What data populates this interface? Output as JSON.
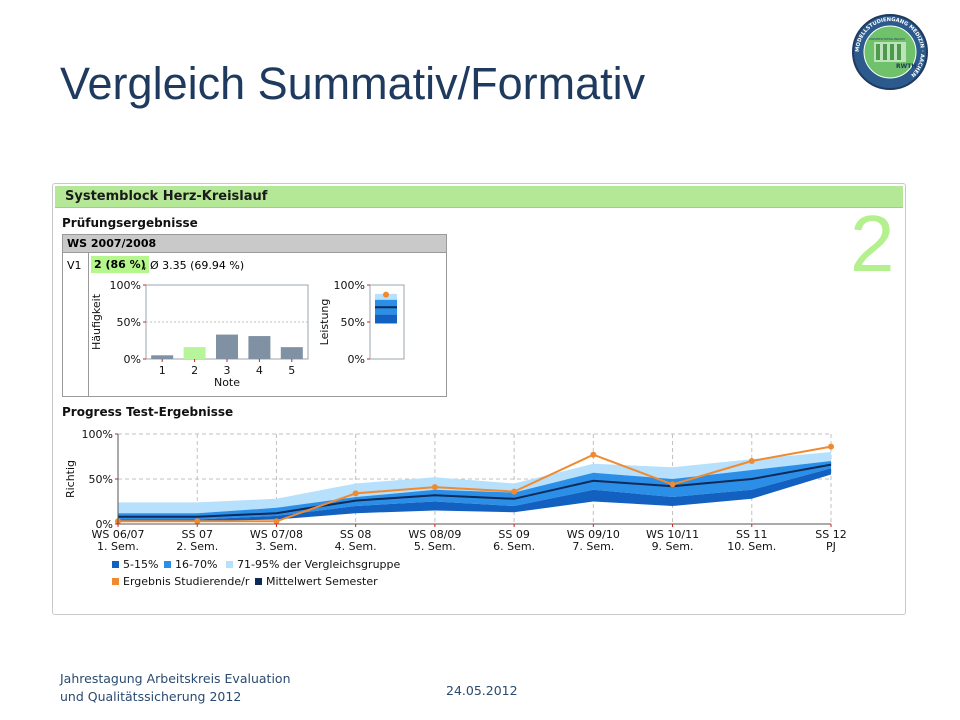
{
  "slide": {
    "title": "Vergleich Summativ/Formativ",
    "big_number": "2",
    "footer_line1": "Jahrestagung Arbeitskreis Evaluation",
    "footer_line2": "und Qualitätssicherung 2012",
    "date": "24.05.2012"
  },
  "logo": {
    "ring_text": "MODELLSTUDIENGANG MEDIZIN · AACHEN",
    "inner_text": "UNIVERSITÄTSKLINIKUM",
    "brand": "RWTH",
    "colors": {
      "ring": "#2c5a8c",
      "inner": "#6fc26a",
      "border": "#1f3a5f"
    }
  },
  "panel": {
    "header": "Systemblock Herz-Kreislauf",
    "section_exam": "Prüfungsergebnisse",
    "semester_label": "WS 2007/2008",
    "row_label": "V1",
    "grade_badge": "2 (86 %)",
    "grade_rest": ", Ø 3.35 (69.94 %)",
    "section_progress": "Progress Test-Ergebnisse"
  },
  "colors": {
    "accent_green": "#b4f08e",
    "band_5_15": "#1260c0",
    "band_16_70": "#2b8fe8",
    "band_71_95": "#b6e0fb",
    "student": "#f08a30",
    "mean": "#0e2a58",
    "bar": "#7f91a2",
    "bar_highlight": "#b8f59a"
  },
  "chart_data": [
    {
      "type": "bar",
      "ylabel": "Häufigkeit",
      "xlabel": "Note",
      "categories": [
        "1",
        "2",
        "3",
        "4",
        "5"
      ],
      "values": [
        5,
        16,
        33,
        31,
        16
      ],
      "highlight_category": "2",
      "yticks": [
        "0%",
        "50%",
        "100%"
      ],
      "ylim": [
        0,
        100
      ]
    },
    {
      "type": "area",
      "ylabel": "Leistung",
      "yticks": [
        "0%",
        "50%",
        "100%"
      ],
      "ylim": [
        0,
        100
      ],
      "bands": {
        "p5_15": [
          48,
          60
        ],
        "p16_70": [
          60,
          80
        ],
        "p71_95": [
          80,
          88
        ]
      },
      "mean": 70,
      "student": 87
    },
    {
      "type": "line",
      "ylabel": "Richtig",
      "yticks": [
        "0%",
        "50%",
        "100%"
      ],
      "ylim": [
        0,
        100
      ],
      "categories": [
        {
          "term": "WS 06/07",
          "sem": "1. Sem."
        },
        {
          "term": "SS 07",
          "sem": "2. Sem."
        },
        {
          "term": "WS 07/08",
          "sem": "3. Sem."
        },
        {
          "term": "SS 08",
          "sem": "4. Sem."
        },
        {
          "term": "WS 08/09",
          "sem": "5. Sem."
        },
        {
          "term": "SS 09",
          "sem": "6. Sem."
        },
        {
          "term": "WS 09/10",
          "sem": "7. Sem."
        },
        {
          "term": "WS 10/11",
          "sem": "9. Sem."
        },
        {
          "term": "SS 11",
          "sem": "10. Sem."
        },
        {
          "term": "SS 12",
          "sem": "PJ"
        }
      ],
      "band_p5": [
        3,
        3,
        5,
        12,
        15,
        13,
        25,
        20,
        28,
        55
      ],
      "band_p15": [
        5,
        5,
        9,
        20,
        25,
        20,
        38,
        30,
        38,
        62
      ],
      "band_p70": [
        12,
        12,
        18,
        30,
        38,
        35,
        57,
        50,
        60,
        70
      ],
      "band_p95": [
        24,
        24,
        28,
        45,
        52,
        45,
        67,
        63,
        72,
        80
      ],
      "mean": [
        8,
        8,
        12,
        26,
        32,
        28,
        48,
        42,
        50,
        66
      ],
      "student": [
        3,
        3,
        3,
        34,
        41,
        36,
        77,
        44,
        70,
        86
      ],
      "legend": [
        {
          "key": "band_5_15",
          "label": "5-15%"
        },
        {
          "key": "band_16_70",
          "label": "16-70%"
        },
        {
          "key": "band_71_95",
          "label": "71-95% der Vergleichsgruppe"
        },
        {
          "key": "student",
          "label": "Ergebnis Studierende/r"
        },
        {
          "key": "mean",
          "label": "Mittelwert Semester"
        }
      ],
      "legend_position": "bottom-left",
      "grid": true
    }
  ]
}
